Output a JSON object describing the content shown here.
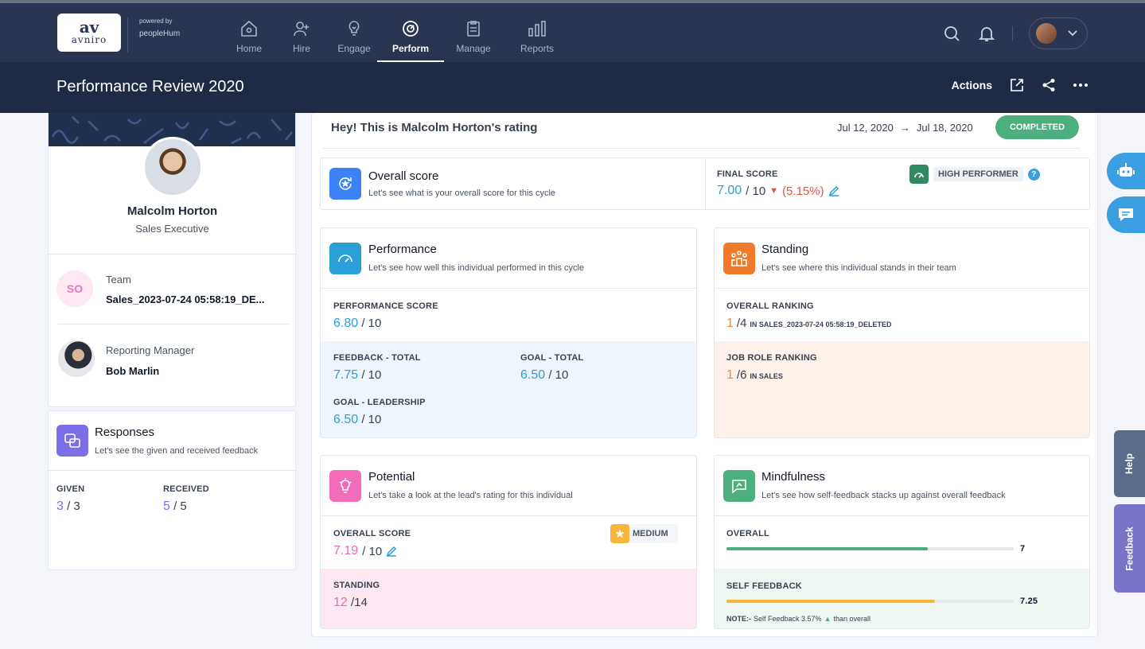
{
  "brand": {
    "logo_mark": "av",
    "logo_name": "avniro",
    "powered_by": "powered by",
    "partner": "peopleHum"
  },
  "nav": [
    {
      "label": "Home",
      "icon": "home-icon"
    },
    {
      "label": "Hire",
      "icon": "add-user-icon"
    },
    {
      "label": "Engage",
      "icon": "bulb-icon"
    },
    {
      "label": "Perform",
      "icon": "gauge-icon",
      "active": true
    },
    {
      "label": "Manage",
      "icon": "clipboard-icon"
    },
    {
      "label": "Reports",
      "icon": "bar-chart-icon"
    }
  ],
  "header": {
    "title": "Performance Review 2020",
    "actions_label": "Actions"
  },
  "profile": {
    "name": "Malcolm Horton",
    "role": "Sales Executive",
    "team_label": "Team",
    "team_initials": "SO",
    "team_value": "Sales_2023-07-24 05:58:19_DE...",
    "manager_label": "Reporting Manager",
    "manager_value": "Bob Marlin"
  },
  "responses": {
    "title": "Responses",
    "subtitle": "Let's see the given and received feedback",
    "given_label": "GIVEN",
    "given_value": "3",
    "given_total": "/ 3",
    "received_label": "RECEIVED",
    "received_value": "5",
    "received_total": "/ 5"
  },
  "review": {
    "heading": "Hey! This is Malcolm Horton's rating",
    "start_date": "Jul 12, 2020",
    "end_date": "Jul 18, 2020",
    "status": "COMPLETED"
  },
  "overall": {
    "title": "Overall score",
    "subtitle": "Let's see what is your overall score for this cycle",
    "final_label": "FINAL SCORE",
    "final_value": "7.00",
    "final_total": "/ 10",
    "change": "(5.15%)",
    "badge": "HIGH PERFORMER"
  },
  "performance": {
    "title": "Performance",
    "subtitle": "Let's see how well this individual performed in this cycle",
    "score_label": "PERFORMANCE SCORE",
    "score_value": "6.80",
    "score_total": "/ 10",
    "feedback_label": "FEEDBACK - TOTAL",
    "feedback_value": "7.75",
    "feedback_total": "/ 10",
    "goal_label": "GOAL - TOTAL",
    "goal_value": "6.50",
    "goal_total": "/ 10",
    "leadership_label": "GOAL - LEADERSHIP",
    "leadership_value": "6.50",
    "leadership_total": "/ 10"
  },
  "standing": {
    "title": "Standing",
    "subtitle": "Let's see where this individual stands in their team",
    "overall_label": "OVERALL RANKING",
    "overall_value": "1",
    "overall_total": "/4",
    "overall_scope": "IN SALES_2023-07-24 05:58:19_DELETED",
    "job_label": "JOB ROLE RANKING",
    "job_value": "1",
    "job_total": "/6",
    "job_scope": "IN SALES"
  },
  "potential": {
    "title": "Potential",
    "subtitle": "Let's take a look at the lead's rating for this individual",
    "score_label": "OVERALL SCORE",
    "score_value": "7.19",
    "score_total": "/ 10",
    "badge": "MEDIUM",
    "standing_label": "STANDING",
    "standing_value": "12",
    "standing_total": "/14"
  },
  "mindfulness": {
    "title": "Mindfulness",
    "subtitle": "Let's see how self-feedback stacks up against overall feedback",
    "overall_label": "OVERALL",
    "overall_value": "7",
    "overall_fraction": 0.7,
    "self_label": "SELF FEEDBACK",
    "self_value": "7.25",
    "self_fraction": 0.725,
    "note_label": "NOTE:-",
    "note_text": "Self Feedback 3.57%",
    "note_suffix": "than overall"
  },
  "side_tabs": {
    "help": "Help",
    "feedback": "Feedback"
  },
  "colors": {
    "topbar": "#2a3551",
    "accent_blue": "#2aa0d6",
    "orange": "#f08a2a",
    "pink": "#e86cb4",
    "green": "#4caf7d"
  }
}
